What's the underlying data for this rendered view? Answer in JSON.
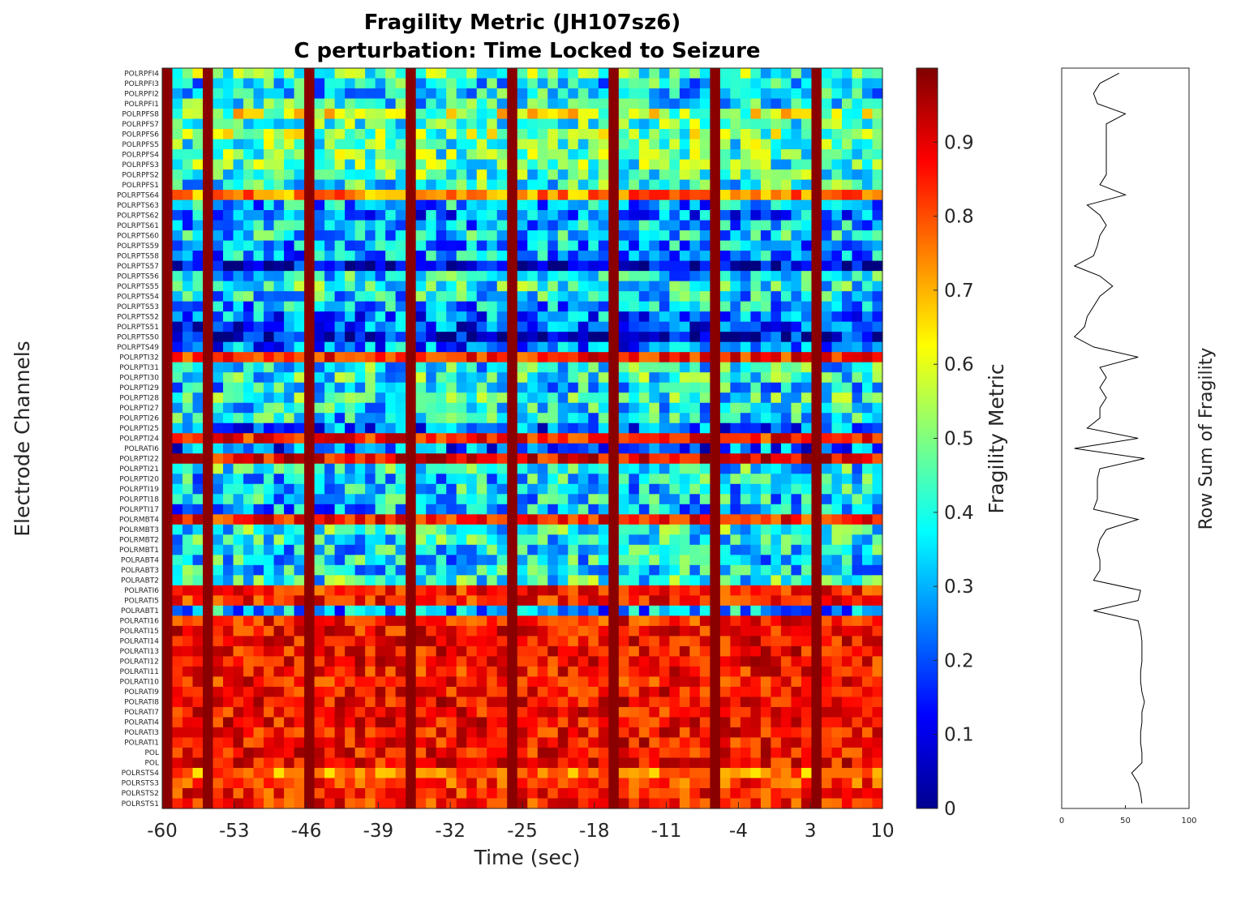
{
  "chart_data": [
    {
      "type": "heatmap",
      "title": "Fragility Metric (JH107sz6)",
      "subtitle": "C perturbation:  Time Locked to Seizure",
      "xlabel": "Time (sec)",
      "ylabel": "Electrode Channels",
      "xlim": [
        -60,
        10
      ],
      "x_ticks": [
        "-60",
        "-53",
        "-46",
        "-39",
        "-32",
        "-25",
        "-18",
        "-11",
        "-4",
        "3",
        "10"
      ],
      "colorbar": {
        "label": "Fragility Metric",
        "colormap": "jet",
        "range": [
          0,
          1
        ],
        "ticks": [
          "0",
          "0.1",
          "0.2",
          "0.3",
          "0.4",
          "0.5",
          "0.6",
          "0.7",
          "0.8",
          "0.9"
        ]
      },
      "channels": [
        "POLRPFI4",
        "POLRPFI3",
        "POLRPFI2",
        "POLRPFI1",
        "POLRPFS8",
        "POLRPFS7",
        "POLRPFS6",
        "POLRPFS5",
        "POLRPFS4",
        "POLRPFS3",
        "POLRPFS2",
        "POLRPFS1",
        "POLRPTS64",
        "POLRPTS63",
        "POLRPTS62",
        "POLRPTS61",
        "POLRPTS60",
        "POLRPTS59",
        "POLRPTS58",
        "POLRPTS57",
        "POLRPTS56",
        "POLRPTS55",
        "POLRPTS54",
        "POLRPTS53",
        "POLRPTS52",
        "POLRPTS51",
        "POLRPTS50",
        "POLRPTS49",
        "POLRPTI32",
        "POLRPTI31",
        "POLRPTI30",
        "POLRPTI29",
        "POLRPTI28",
        "POLRPTI27",
        "POLRPTI26",
        "POLRPTI25",
        "POLRPTI24",
        "POLRATI6",
        "POLRPTI22",
        "POLRPTI21",
        "POLRPTI20",
        "POLRPTI19",
        "POLRPTI18",
        "POLRPTI17",
        "POLRMBT4",
        "POLRMBT3",
        "POLRMBT2",
        "POLRMBT1",
        "POLRABT4",
        "POLRABT3",
        "POLRABT2",
        "POLRATI6",
        "POLRATI5",
        "POLRABT1",
        "POLRATI16",
        "POLRATI15",
        "POLRATI14",
        "POLRATI13",
        "POLRATI12",
        "POLRATI11",
        "POLRATI10",
        "POLRATI9",
        "POLRATI8",
        "POLRATI7",
        "POLRATI4",
        "POLRATI3",
        "POLRATI1",
        "POL",
        "POL",
        "POLRSTS4",
        "POLRSTS3",
        "POLRSTS2",
        "POLRSTS1"
      ],
      "channel_mean_fragility": [
        0.45,
        0.35,
        0.35,
        0.38,
        0.55,
        0.45,
        0.5,
        0.45,
        0.45,
        0.45,
        0.45,
        0.4,
        0.75,
        0.3,
        0.25,
        0.3,
        0.35,
        0.3,
        0.28,
        0.05,
        0.35,
        0.4,
        0.35,
        0.3,
        0.25,
        0.2,
        0.08,
        0.25,
        0.85,
        0.38,
        0.4,
        0.35,
        0.4,
        0.35,
        0.35,
        0.22,
        0.85,
        0.22,
        0.88,
        0.38,
        0.35,
        0.35,
        0.35,
        0.3,
        0.85,
        0.4,
        0.38,
        0.35,
        0.35,
        0.35,
        0.4,
        0.85,
        0.85,
        0.3,
        0.85,
        0.87,
        0.87,
        0.87,
        0.87,
        0.86,
        0.86,
        0.87,
        0.88,
        0.87,
        0.87,
        0.87,
        0.87,
        0.87,
        0.87,
        0.75,
        0.82,
        0.85,
        0.85
      ],
      "high_fragility_column_times": [
        -60,
        -56,
        -46,
        -36,
        -26,
        -16,
        -6,
        4
      ]
    },
    {
      "type": "line",
      "ylabel": "Row Sum of Fragility",
      "xlim": [
        0,
        100
      ],
      "x_ticks": [
        "0",
        "50",
        "100"
      ],
      "orientation": "vertical, rows aligned with heatmap channels",
      "row_sums": [
        45,
        30,
        25,
        28,
        50,
        35,
        35,
        35,
        35,
        35,
        35,
        30,
        50,
        20,
        30,
        35,
        30,
        28,
        25,
        10,
        30,
        40,
        30,
        25,
        20,
        18,
        10,
        25,
        60,
        30,
        35,
        30,
        35,
        30,
        30,
        20,
        60,
        10,
        65,
        30,
        28,
        28,
        28,
        25,
        60,
        35,
        30,
        28,
        30,
        30,
        25,
        62,
        60,
        25,
        60,
        62,
        63,
        63,
        63,
        62,
        62,
        63,
        65,
        63,
        63,
        62,
        62,
        63,
        63,
        55,
        60,
        62,
        63
      ],
      "line_color": "#000000"
    }
  ]
}
